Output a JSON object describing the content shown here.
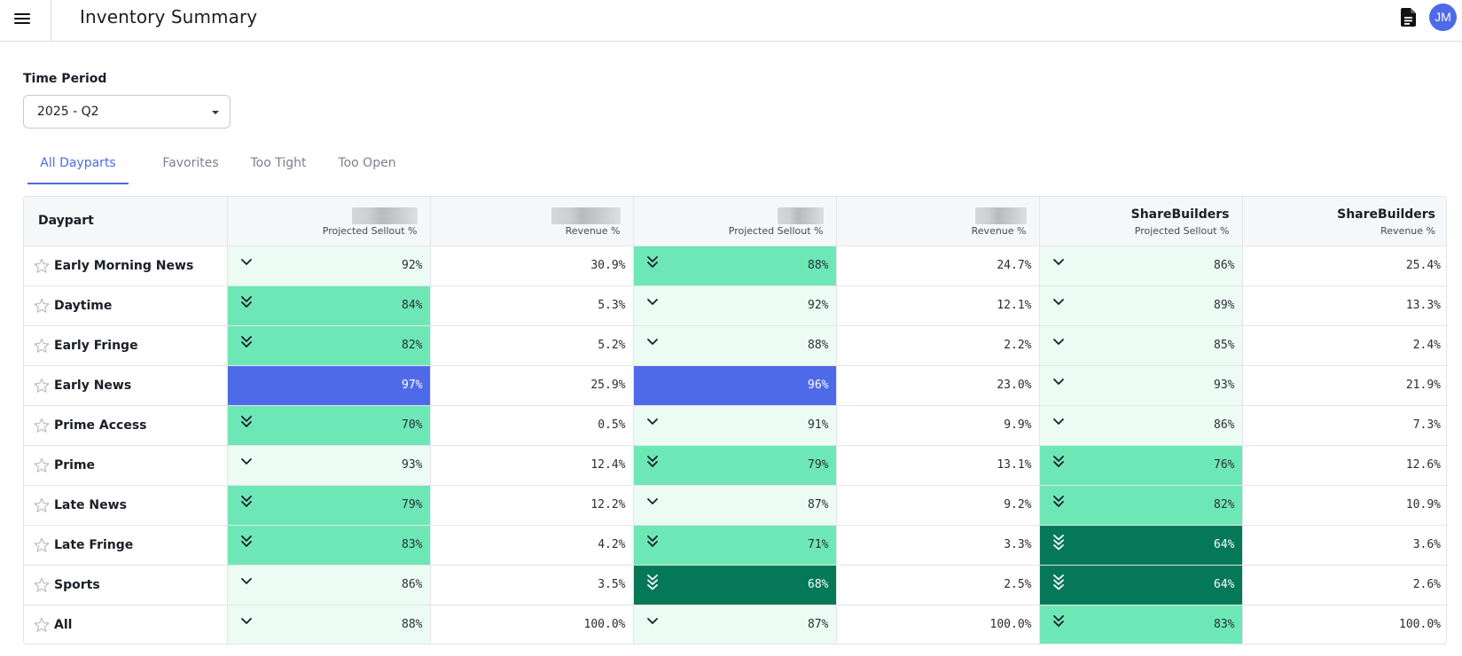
{
  "header": {
    "title": "Inventory Summary",
    "avatar_initials": "JM",
    "menu_icon": "menu-icon",
    "doc_icon": "document-icon"
  },
  "time_period": {
    "label": "Time Period",
    "value": "2025 - Q2"
  },
  "tabs": [
    {
      "label": "All Dayparts",
      "active": true
    },
    {
      "label": "Favorites",
      "active": false
    },
    {
      "label": "Too Tight",
      "active": false
    },
    {
      "label": "Too Open",
      "active": false
    }
  ],
  "table": {
    "daypart_header": "Daypart",
    "columns": [
      {
        "title": "",
        "subtitle": "Projected Sellout %",
        "redacted": true
      },
      {
        "title": "",
        "subtitle": "Revenue %",
        "redacted": true
      },
      {
        "title": "",
        "subtitle": "Projected Sellout %",
        "redacted": true
      },
      {
        "title": "",
        "subtitle": "Revenue %",
        "redacted": true
      },
      {
        "title": "ShareBuilders",
        "subtitle": "Projected Sellout %",
        "redacted": false
      },
      {
        "title": "ShareBuilders",
        "subtitle": "Revenue %",
        "redacted": false
      }
    ],
    "rows": [
      {
        "daypart": "Early Morning News",
        "cells": [
          "92%",
          "30.9%",
          "88%",
          "24.7%",
          "86%",
          "25.4%"
        ]
      },
      {
        "daypart": "Daytime",
        "cells": [
          "84%",
          "5.3%",
          "92%",
          "12.1%",
          "89%",
          "13.3%"
        ]
      },
      {
        "daypart": "Early Fringe",
        "cells": [
          "82%",
          "5.2%",
          "88%",
          "2.2%",
          "85%",
          "2.4%"
        ]
      },
      {
        "daypart": "Early News",
        "cells": [
          "97%",
          "25.9%",
          "96%",
          "23.0%",
          "93%",
          "21.9%"
        ]
      },
      {
        "daypart": "Prime Access",
        "cells": [
          "70%",
          "0.5%",
          "91%",
          "9.9%",
          "86%",
          "7.3%"
        ]
      },
      {
        "daypart": "Prime",
        "cells": [
          "93%",
          "12.4%",
          "79%",
          "13.1%",
          "76%",
          "12.6%"
        ]
      },
      {
        "daypart": "Late News",
        "cells": [
          "79%",
          "12.2%",
          "87%",
          "9.2%",
          "82%",
          "10.9%"
        ]
      },
      {
        "daypart": "Late Fringe",
        "cells": [
          "83%",
          "4.2%",
          "71%",
          "3.3%",
          "64%",
          "3.6%"
        ]
      },
      {
        "daypart": "Sports",
        "cells": [
          "86%",
          "3.5%",
          "68%",
          "2.5%",
          "64%",
          "2.6%"
        ]
      },
      {
        "daypart": "All",
        "cells": [
          "88%",
          "100.0%",
          "87%",
          "100.0%",
          "83%",
          "100.0%"
        ]
      }
    ],
    "sellout_levels": [
      [
        "light",
        "mid",
        "light"
      ],
      [
        "mid",
        "light",
        "light"
      ],
      [
        "mid",
        "light",
        "light"
      ],
      [
        "blue",
        "blue",
        "light"
      ],
      [
        "mid",
        "light",
        "light"
      ],
      [
        "light",
        "mid",
        "mid"
      ],
      [
        "mid",
        "light",
        "mid"
      ],
      [
        "mid",
        "mid",
        "dark"
      ],
      [
        "light",
        "dark",
        "dark"
      ],
      [
        "light",
        "light",
        "mid"
      ]
    ],
    "colors": {
      "light": "#ecfbf3",
      "mid": "#6ee7b7",
      "dark": "#047857",
      "blue": "#4f6ae8",
      "accent": "#4f6ae8"
    }
  }
}
